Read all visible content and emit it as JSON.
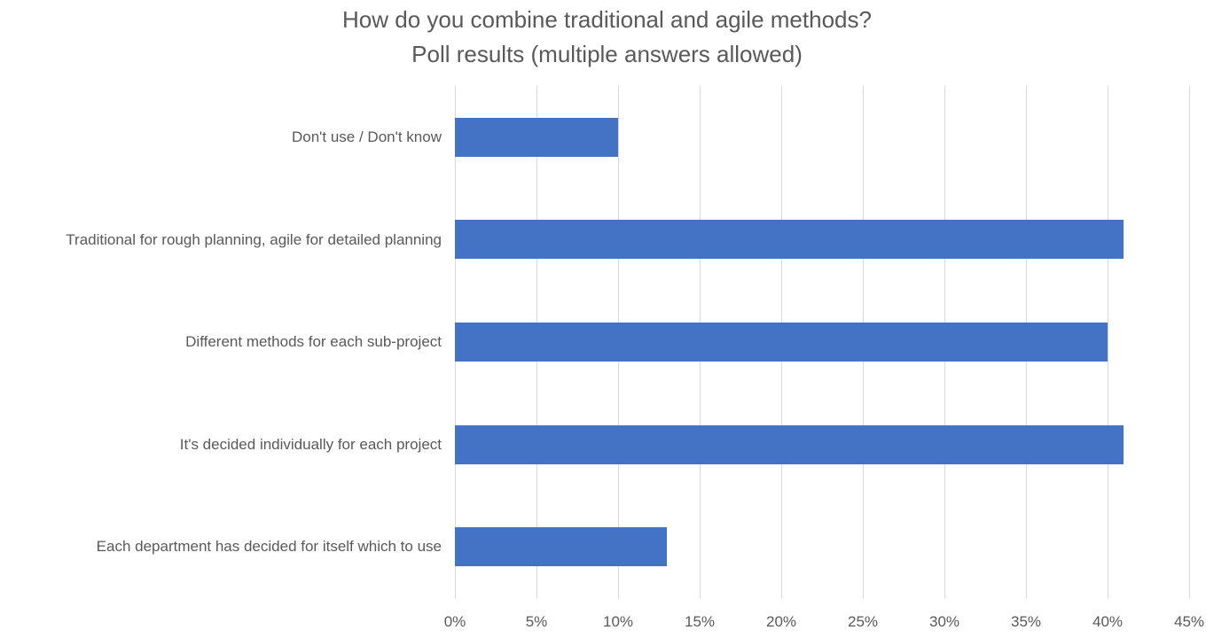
{
  "title": {
    "line1": "How do you combine traditional and agile methods?",
    "line2": "Poll results (multiple answers allowed)"
  },
  "chart_data": {
    "type": "bar",
    "orientation": "horizontal",
    "title": "How do you combine traditional and agile methods? Poll results (multiple answers allowed)",
    "categories": [
      "Don't use / Don't know",
      "Traditional for rough planning, agile for detailed planning",
      "Different methods for each sub-project",
      "It's decided individually for each project",
      "Each department has decided for itself which to use"
    ],
    "values": [
      10,
      41,
      40,
      41,
      13
    ],
    "unit": "%",
    "xlabel": "",
    "ylabel": "",
    "xlim": [
      0,
      45
    ],
    "x_tick_values": [
      0,
      5,
      10,
      15,
      20,
      25,
      30,
      35,
      40,
      45
    ],
    "x_tick_labels": [
      "0%",
      "5%",
      "10%",
      "15%",
      "20%",
      "25%",
      "30%",
      "35%",
      "40%",
      "45%"
    ],
    "grid": "vertical-only",
    "legend": "none",
    "colors": {
      "bar": "#4472C4",
      "gridline": "#D9D9D9",
      "text": "#595959",
      "background": "#FFFFFF"
    }
  }
}
